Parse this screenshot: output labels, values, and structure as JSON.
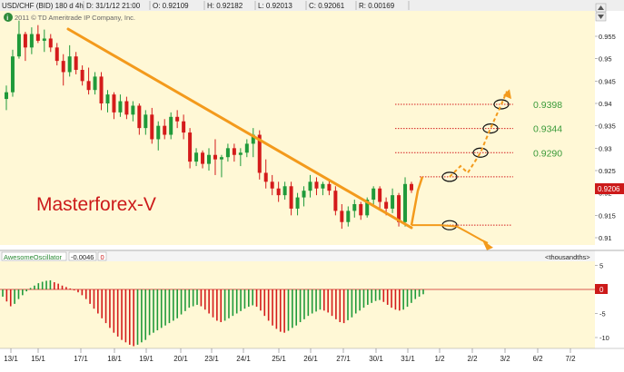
{
  "header": {
    "symbol": "USD/CHF (BID) 180 d 4h",
    "date": "D: 31/1/12 21:00",
    "open": "O: 0.92109",
    "high": "H: 0.92182",
    "low": "L: 0.92013",
    "close": "C: 0.92061",
    "range": "R: 0.00169"
  },
  "copyright": "2011 © TD Ameritrade IP Company, Inc.",
  "watermark": "Masterforex-V",
  "current_price": "0.9206",
  "oscillator": {
    "name": "AwesomeOscillator",
    "value": "-0.0046",
    "zero_badge": "0",
    "units_label": "<thousandths>",
    "axis_ticks": [
      5,
      0,
      -5,
      -10
    ]
  },
  "colors": {
    "background": "#fff8d6",
    "bull": "#1f9a3a",
    "bear": "#d41b1b",
    "trendline": "#f39a1c",
    "target_lines": "#d42020",
    "target_labels": "#3a9a3a",
    "header_bg": "#eeeeee"
  },
  "chart_data": {
    "type": "candlestick",
    "ylim": [
      0.908,
      0.958
    ],
    "y_ticks": [
      0.91,
      0.915,
      0.92,
      0.925,
      0.93,
      0.935,
      0.94,
      0.945,
      0.95,
      0.955
    ],
    "x_tick_labels": [
      "13/1",
      "15/1",
      "17/1",
      "18/1",
      "19/1",
      "20/1",
      "23/1",
      "24/1",
      "25/1",
      "26/1",
      "27/1",
      "30/1",
      "31/1",
      "1/2",
      "2/2",
      "3/2",
      "6/2",
      "7/2"
    ],
    "candles": [
      {
        "o": 0.941,
        "h": 0.944,
        "l": 0.9385,
        "c": 0.9425
      },
      {
        "o": 0.9425,
        "h": 0.952,
        "l": 0.9415,
        "c": 0.9505
      },
      {
        "o": 0.9505,
        "h": 0.9585,
        "l": 0.95,
        "c": 0.9555
      },
      {
        "o": 0.9555,
        "h": 0.956,
        "l": 0.9495,
        "c": 0.9525
      },
      {
        "o": 0.9525,
        "h": 0.957,
        "l": 0.951,
        "c": 0.9555
      },
      {
        "o": 0.9555,
        "h": 0.9575,
        "l": 0.9535,
        "c": 0.954
      },
      {
        "o": 0.954,
        "h": 0.9565,
        "l": 0.9515,
        "c": 0.9545
      },
      {
        "o": 0.9545,
        "h": 0.9555,
        "l": 0.9515,
        "c": 0.9525
      },
      {
        "o": 0.9525,
        "h": 0.9535,
        "l": 0.9485,
        "c": 0.9495
      },
      {
        "o": 0.9495,
        "h": 0.951,
        "l": 0.944,
        "c": 0.947
      },
      {
        "o": 0.947,
        "h": 0.953,
        "l": 0.946,
        "c": 0.9505
      },
      {
        "o": 0.9505,
        "h": 0.9515,
        "l": 0.9465,
        "c": 0.9475
      },
      {
        "o": 0.9475,
        "h": 0.9485,
        "l": 0.944,
        "c": 0.945
      },
      {
        "o": 0.945,
        "h": 0.948,
        "l": 0.942,
        "c": 0.943
      },
      {
        "o": 0.943,
        "h": 0.947,
        "l": 0.942,
        "c": 0.946
      },
      {
        "o": 0.946,
        "h": 0.947,
        "l": 0.9385,
        "c": 0.94
      },
      {
        "o": 0.94,
        "h": 0.943,
        "l": 0.938,
        "c": 0.942
      },
      {
        "o": 0.942,
        "h": 0.9425,
        "l": 0.9365,
        "c": 0.938
      },
      {
        "o": 0.938,
        "h": 0.942,
        "l": 0.937,
        "c": 0.9405
      },
      {
        "o": 0.9405,
        "h": 0.9415,
        "l": 0.9365,
        "c": 0.9375
      },
      {
        "o": 0.9375,
        "h": 0.9405,
        "l": 0.936,
        "c": 0.9395
      },
      {
        "o": 0.9395,
        "h": 0.94,
        "l": 0.933,
        "c": 0.9345
      },
      {
        "o": 0.9345,
        "h": 0.9385,
        "l": 0.933,
        "c": 0.9375
      },
      {
        "o": 0.9375,
        "h": 0.939,
        "l": 0.931,
        "c": 0.932
      },
      {
        "o": 0.932,
        "h": 0.936,
        "l": 0.9295,
        "c": 0.935
      },
      {
        "o": 0.935,
        "h": 0.9365,
        "l": 0.932,
        "c": 0.933
      },
      {
        "o": 0.933,
        "h": 0.938,
        "l": 0.932,
        "c": 0.937
      },
      {
        "o": 0.937,
        "h": 0.9385,
        "l": 0.9345,
        "c": 0.936
      },
      {
        "o": 0.936,
        "h": 0.9375,
        "l": 0.932,
        "c": 0.9335
      },
      {
        "o": 0.9335,
        "h": 0.9345,
        "l": 0.9255,
        "c": 0.927
      },
      {
        "o": 0.927,
        "h": 0.93,
        "l": 0.926,
        "c": 0.929
      },
      {
        "o": 0.929,
        "h": 0.9295,
        "l": 0.9255,
        "c": 0.9265
      },
      {
        "o": 0.9265,
        "h": 0.93,
        "l": 0.925,
        "c": 0.9285
      },
      {
        "o": 0.9285,
        "h": 0.932,
        "l": 0.924,
        "c": 0.9275
      },
      {
        "o": 0.9275,
        "h": 0.9285,
        "l": 0.9235,
        "c": 0.928
      },
      {
        "o": 0.928,
        "h": 0.931,
        "l": 0.927,
        "c": 0.93
      },
      {
        "o": 0.93,
        "h": 0.931,
        "l": 0.927,
        "c": 0.9285
      },
      {
        "o": 0.9285,
        "h": 0.93,
        "l": 0.926,
        "c": 0.929
      },
      {
        "o": 0.929,
        "h": 0.932,
        "l": 0.928,
        "c": 0.931
      },
      {
        "o": 0.931,
        "h": 0.9345,
        "l": 0.928,
        "c": 0.933
      },
      {
        "o": 0.933,
        "h": 0.934,
        "l": 0.923,
        "c": 0.9245
      },
      {
        "o": 0.9245,
        "h": 0.9275,
        "l": 0.921,
        "c": 0.9225
      },
      {
        "o": 0.9225,
        "h": 0.924,
        "l": 0.9195,
        "c": 0.921
      },
      {
        "o": 0.921,
        "h": 0.9225,
        "l": 0.918,
        "c": 0.9195
      },
      {
        "o": 0.9195,
        "h": 0.9225,
        "l": 0.9185,
        "c": 0.9215
      },
      {
        "o": 0.9215,
        "h": 0.9225,
        "l": 0.915,
        "c": 0.9165
      },
      {
        "o": 0.9165,
        "h": 0.92,
        "l": 0.915,
        "c": 0.919
      },
      {
        "o": 0.919,
        "h": 0.9215,
        "l": 0.917,
        "c": 0.9205
      },
      {
        "o": 0.9205,
        "h": 0.924,
        "l": 0.919,
        "c": 0.9225
      },
      {
        "o": 0.9225,
        "h": 0.9235,
        "l": 0.9195,
        "c": 0.921
      },
      {
        "o": 0.921,
        "h": 0.9225,
        "l": 0.9195,
        "c": 0.922
      },
      {
        "o": 0.922,
        "h": 0.923,
        "l": 0.9195,
        "c": 0.9205
      },
      {
        "o": 0.9205,
        "h": 0.9215,
        "l": 0.915,
        "c": 0.916
      },
      {
        "o": 0.916,
        "h": 0.9175,
        "l": 0.912,
        "c": 0.9135
      },
      {
        "o": 0.9135,
        "h": 0.917,
        "l": 0.9125,
        "c": 0.916
      },
      {
        "o": 0.916,
        "h": 0.9185,
        "l": 0.9145,
        "c": 0.9175
      },
      {
        "o": 0.9175,
        "h": 0.918,
        "l": 0.914,
        "c": 0.915
      },
      {
        "o": 0.915,
        "h": 0.919,
        "l": 0.9145,
        "c": 0.9185
      },
      {
        "o": 0.9185,
        "h": 0.9215,
        "l": 0.917,
        "c": 0.921
      },
      {
        "o": 0.921,
        "h": 0.9215,
        "l": 0.9165,
        "c": 0.918
      },
      {
        "o": 0.918,
        "h": 0.919,
        "l": 0.915,
        "c": 0.9165
      },
      {
        "o": 0.9165,
        "h": 0.921,
        "l": 0.9155,
        "c": 0.9195
      },
      {
        "o": 0.9195,
        "h": 0.92,
        "l": 0.9125,
        "c": 0.9135
      },
      {
        "o": 0.9135,
        "h": 0.9235,
        "l": 0.9125,
        "c": 0.922
      },
      {
        "o": 0.922,
        "h": 0.9225,
        "l": 0.92,
        "c": 0.9206
      }
    ],
    "oscillator_values": [
      -1.5,
      -2.5,
      -3.5,
      -3.0,
      -2.0,
      -1.2,
      -0.4,
      0.3,
      0.8,
      1.3,
      1.6,
      1.8,
      1.9,
      1.5,
      1.2,
      0.8,
      0.5,
      0.2,
      -0.2,
      -0.6,
      -1.2,
      -2.0,
      -3.0,
      -4.0,
      -5.0,
      -6.0,
      -7.0,
      -8.0,
      -9.0,
      -9.8,
      -10.5,
      -11.0,
      -11.5,
      -11.8,
      -11.5,
      -11.0,
      -10.5,
      -9.5,
      -9.0,
      -8.5,
      -8.0,
      -7.5,
      -7.0,
      -6.5,
      -6.0,
      -5.2,
      -4.5,
      -3.8,
      -3.5,
      -3.2,
      -3.5,
      -4.2,
      -5.0,
      -5.8,
      -6.5,
      -6.8,
      -6.5,
      -6.0,
      -5.5,
      -5.0,
      -4.5,
      -4.0,
      -3.6,
      -3.3,
      -3.6,
      -4.4,
      -5.5,
      -6.5,
      -7.5,
      -8.2,
      -8.8,
      -9.0,
      -8.6,
      -8.0,
      -7.5,
      -6.8,
      -6.2,
      -5.5,
      -5.0,
      -4.6,
      -4.2,
      -4.4,
      -4.8,
      -5.5,
      -6.2,
      -6.8,
      -7.0,
      -6.4,
      -5.8,
      -5.0,
      -4.4,
      -3.8,
      -3.2,
      -2.8,
      -2.4,
      -2.2,
      -2.6,
      -3.2,
      -3.8,
      -4.2,
      -4.4,
      -4.2,
      -3.6,
      -2.8,
      -2.0,
      -1.5,
      -1.0
    ],
    "annotations": {
      "target_levels": [
        {
          "value": 0.9398,
          "label": "0.9398"
        },
        {
          "value": 0.9344,
          "label": "0.9344"
        },
        {
          "value": 0.929,
          "label": "0.9290"
        }
      ],
      "extra_levels": [
        0.9236,
        0.9128
      ]
    }
  }
}
